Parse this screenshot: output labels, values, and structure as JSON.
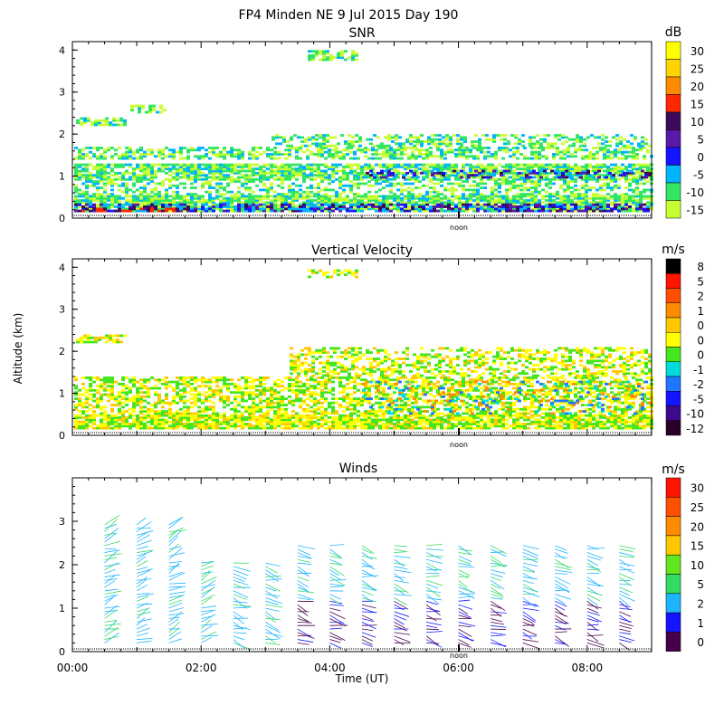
{
  "figure": {
    "title": "FP4 Minden NE   9 Jul 2015 Day 190",
    "ylabel": "Altitude (km)",
    "xlabel": "Time (UT)",
    "noon_label": "noon"
  },
  "chart_data": [
    {
      "type": "heatmap",
      "title": "SNR",
      "unit": "dB",
      "ylim": [
        0,
        4.2
      ],
      "yticks": [
        0,
        1,
        2,
        3,
        4
      ],
      "xlim": [
        "00:00",
        "09:00"
      ],
      "colorbar_labels": [
        "30",
        "25",
        "20",
        "15",
        "10",
        "5",
        "0",
        "-5",
        "-10",
        "-15"
      ],
      "colorbar_colors": [
        "#ffff00",
        "#ffd400",
        "#ff8c00",
        "#ff2800",
        "#3c0a5a",
        "#5a1aa8",
        "#1414ff",
        "#00b4ff",
        "#32e664",
        "#c8ff32"
      ]
    },
    {
      "type": "heatmap",
      "title": "Vertical Velocity",
      "unit": "m/s",
      "ylim": [
        0,
        4.2
      ],
      "yticks": [
        0,
        1,
        2,
        3,
        4
      ],
      "xlim": [
        "00:00",
        "09:00"
      ],
      "colorbar_labels": [
        "8",
        "5",
        "2",
        "1",
        "0",
        "0",
        "0",
        "-1",
        "-2",
        "-5",
        "-10",
        "-12"
      ],
      "colorbar_colors": [
        "#000000",
        "#ff1400",
        "#ff5000",
        "#ff8c00",
        "#ffc800",
        "#ffff00",
        "#46e61e",
        "#00dcdc",
        "#1e78ff",
        "#1414ff",
        "#3c0a8c",
        "#2a0028"
      ]
    },
    {
      "type": "scatter",
      "title": "Winds",
      "unit": "m/s",
      "ylim": [
        0,
        4
      ],
      "yticks": [
        0,
        1,
        2,
        3
      ],
      "x_tick_labels": [
        "00:00",
        "02:00",
        "04:00",
        "06:00",
        "08:00"
      ],
      "x_tick_hours": [
        0,
        2,
        4,
        6,
        8
      ],
      "colorbar_labels": [
        "30",
        "25",
        "20",
        "15",
        "10",
        "5",
        "2",
        "1",
        "0"
      ],
      "colorbar_colors": [
        "#ff1400",
        "#ff5000",
        "#ff8c00",
        "#ffc800",
        "#64e61e",
        "#32dc64",
        "#1eb4ff",
        "#1414ff",
        "#46004b"
      ],
      "profiles_hours": [
        0.5,
        1.0,
        1.5,
        2.0,
        2.5,
        3.0,
        3.5,
        4.0,
        4.5,
        5.0,
        5.5,
        6.0,
        6.5,
        7.0,
        7.5,
        8.0,
        8.5
      ]
    }
  ]
}
